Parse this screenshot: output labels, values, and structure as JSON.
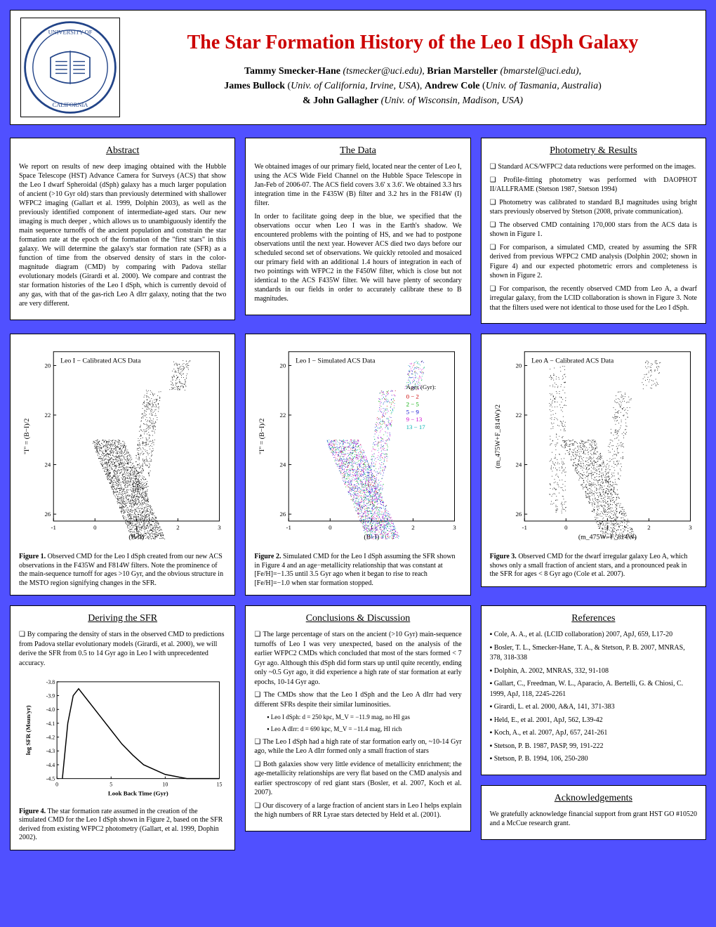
{
  "header": {
    "title": "The Star Formation History of the Leo I dSph Galaxy",
    "authors_html": "<b>Tammy Smecker-Hane</b> <i>(tsmecker@uci.edu),</i> <b>Brian Marsteller</b> <i>(bmarstel@uci.edu),</i><br><b>James Bullock</b> (<i>Univ. of California, Irvine, USA</i>), <b>Andrew Cole</b> (<i>Univ. of Tasmania, Australia</i>)<br><b>& John Gallagher</b> <i>(Univ. of Wisconsin, Madison, USA)</i>"
  },
  "abstract": {
    "title": "Abstract",
    "text": "We report on results of new deep imaging obtained with the Hubble Space Telescope (HST) Advance Camera for Surveys (ACS) that show the Leo I dwarf Spheroidal (dSph) galaxy has a much larger population of ancient (>10 Gyr old) stars than previously determined with shallower WFPC2 imaging (Gallart et al. 1999, Dolphin 2003), as well as the previously identified component of intermediate-aged stars. Our new imaging is much deeper , which allows us to unambiguously identify the main sequence turnoffs of the ancient population and constrain the star formation rate at the epoch of the formation of the \"first stars\" in this galaxy. We will determine the galaxy's star formation rate (SFR) as a function of time from the observed density of stars in the color-magnitude diagram (CMD) by comparing with Padova stellar evolutionary models (Girardi et al. 2000). We compare and contrast the star formation histories of the Leo I dSph, which is currently devoid of any gas, with that of the gas-rich Leo A dIrr galaxy, noting that the two are very different."
  },
  "data": {
    "title": "The Data",
    "p1": "We obtained images of our primary field, located near the center of Leo I, using the ACS Wide Field Channel on the Hubble Space Telescope in Jan-Feb of 2006-07. The ACS field covers 3.6' x 3.6'. We obtained 3.3 hrs integration time in the F435W (B) filter and 3.2 hrs in the F814W (I) filter.",
    "p2": "In order to facilitate going deep in the blue, we specified that the observations occur when Leo I was in the Earth's shadow. We encountered problems with the pointing of HS, and we had to postpone observations until the next year. However ACS died two days before our scheduled second set of observations. We quickly retooled and mosaiced our primary field with an additional 1.4 hours of integration in each of two pointings with WFPC2 in the F450W filter, which is close but not identical to the ACS F435W filter. We will have plenty of secondary standards in our fields in order to accurately calibrate these to B magnitudes."
  },
  "photometry": {
    "title": "Photometry & Results",
    "b1": "Standard ACS/WFPC2 data reductions were performed on the images.",
    "b2": "Profile-fitting photometry was performed with DAOPHOT II/ALLFRAME (Stetson 1987, Stetson 1994)",
    "b3": "Photometry was calibrated to standard B,I magnitudes using bright stars previously observed by Stetson (2008, private communication).",
    "b4": "The observed CMD containing 170,000 stars from the ACS data is shown in Figure 1.",
    "b5": "For comparison, a simulated CMD, created by assuming the SFR derived from previous WFPC2 CMD analysis (Dolphin 2002; shown in Figure 4) and our expected photometric errors and completeness is shown in Figure 2.",
    "b6": "For comparison, the recently observed CMD from Leo A, a dwarf irregular galaxy, from the LCID collaboration is shown in Figure 3. Note that the filters used were not identical to those used for the Leo I dSph."
  },
  "fig1": {
    "plot_title": "Leo I − Calibrated ACS Data",
    "xlabel": "(B−I)",
    "ylabel": "\"I\" = (B−I)/2",
    "yticks": [
      "20",
      "22",
      "24",
      "26"
    ],
    "xticks": [
      "-1",
      "0",
      "1",
      "2",
      "3"
    ],
    "caption": "<b>Figure 1.</b> Observed CMD for the Leo I dSph created from our new ACS observations in the F435W and F814W filters. Note the prominence of the main-sequence turnoff for ages >10 Gyr, and the obvious structure in the MSTO region signifying changes in the SFR."
  },
  "fig2": {
    "plot_title": "Leo I − Simulated ACS Data",
    "xlabel": "(B−I)",
    "ylabel": "\"I\" = (B−I)/2",
    "yticks": [
      "20",
      "22",
      "24",
      "26"
    ],
    "xticks": [
      "-1",
      "0",
      "1",
      "2",
      "3"
    ],
    "legend_title": "Ages (Gyr):",
    "legend": [
      {
        "label": "0 − 2",
        "color": "#cc0000"
      },
      {
        "label": "2 − 5",
        "color": "#00aa00"
      },
      {
        "label": "5 − 9",
        "color": "#0000cc"
      },
      {
        "label": "9 − 13",
        "color": "#cc00cc"
      },
      {
        "label": "13 − 17",
        "color": "#00b0b0"
      }
    ],
    "caption": "<b>Figure 2.</b> Simulated CMD for the Leo I dSph assuming the SFR shown in Figure 4 and an age−metallicity relationship that was constant at [Fe/H]=−1.35 until 3.5 Gyr ago when it began to rise to reach [Fe/H]=−1.0 when star formation stopped."
  },
  "fig3": {
    "plot_title": "Leo A − Calibrated ACS Data",
    "xlabel": "(m_475W−F_814W)",
    "ylabel": "(m_475W+F_814W)/2",
    "yticks": [
      "20",
      "22",
      "24",
      "26"
    ],
    "xticks": [
      "-1",
      "0",
      "1",
      "2",
      "3"
    ],
    "caption": "<b>Figure 3.</b> Observed CMD for the dwarf irregular galaxy Leo A, which shows only a small fraction of ancient stars, and a pronounced peak in the SFR for ages < 8 Gyr ago (Cole et al. 2007)."
  },
  "deriving": {
    "title": "Deriving the SFR",
    "b1": "By comparing the density of stars in the observed CMD to predictions from Padova stellar evolutionary models (Girardi, et al. 2000), we will derive the SFR from 0.5 to 14 Gyr ago in Leo I with unprecedented accuracy.",
    "fig4_caption": "<b>Figure 4.</b> The star formation rate assumed in the creation of the simulated CMD for the Leo I dSph shown in Figure 2, based on the SFR derived from existing WFPC2 photometry (Gallart, et al. 1999, Dophin 2002).",
    "fig4": {
      "xlabel": "Look Back Time (Gyr)",
      "ylabel": "log SFR (Msun/yr)",
      "xticks": [
        "0",
        "5",
        "10",
        "15"
      ],
      "yticks": [
        "-4.5",
        "-4.4",
        "-4.3",
        "-4.2",
        "-4.1",
        "-4.0",
        "-3.9",
        "-3.8"
      ]
    }
  },
  "conclusions": {
    "title": "Conclusions & Discussion",
    "b1": "The large percentage of stars on the ancient (>10 Gyr) main-sequence turnoffs of Leo I was very unexpected, based on the analysis of the earlier WFPC2 CMDs which concluded that most of the stars formed < 7 Gyr ago. Although this dSph did form stars up until quite recently, ending only ~0.5 Gyr ago, it did experience a high rate of star formation at early epochs, 10-14 Gyr ago.",
    "b2": "The CMDs show that the Leo I dSph and the Leo A dIrr had very different SFRs despite their similar luminosities.",
    "sub1": "Leo I dSph: d = 250 kpc, M_V = −11.9 mag, no HI gas",
    "sub2": "Leo A dIrr:  d = 690 kpc, M_V = −11.4 mag, HI rich",
    "b3": "The Leo I dSph had a high rate of star formation early on, ~10-14 Gyr ago, while the Leo A dIrr formed only a small fraction of stars",
    "b4": "Both galaxies show very little evidence of metallicity enrichment; the age-metallicity relationships are very flat based on the CMD analysis and earlier spectroscopy of red giant stars (Bosler, et al. 2007, Koch et al. 2007).",
    "b5": "Our discovery of a large fraction of ancient stars in Leo I helps explain the high numbers of RR Lyrae stars detected by Held et al. (2001)."
  },
  "references": {
    "title": "References",
    "items": [
      "Cole, A. A., et al. (LCID collaboration) 2007, ApJ, 659, L17-20",
      "Bosler, T. L., Smecker-Hane, T. A., & Stetson, P.  B. 2007, MNRAS, 378, 318-338",
      "Dolphin, A. 2002, MNRAS, 332, 91-108",
      "Gallart, C., Freedman, W. L., Aparacio, A. Bertelli, G. & Chiosi, C. 1999, ApJ, 118, 2245-2261",
      "Girardi, L. et al. 2000, A&A, 141, 371-383",
      "Held, E., et al. 2001, ApJ, 562, L39-42",
      "Koch, A., et al. 2007, ApJ, 657, 241-261",
      "Stetson, P. B. 1987, PASP, 99, 191-222",
      "Stetson, P. B. 1994, 106, 250-280"
    ]
  },
  "ack": {
    "title": "Acknowledgements",
    "text": "We gratefully acknowledge financial support from grant HST GO #10520 and a McCue research grant."
  }
}
